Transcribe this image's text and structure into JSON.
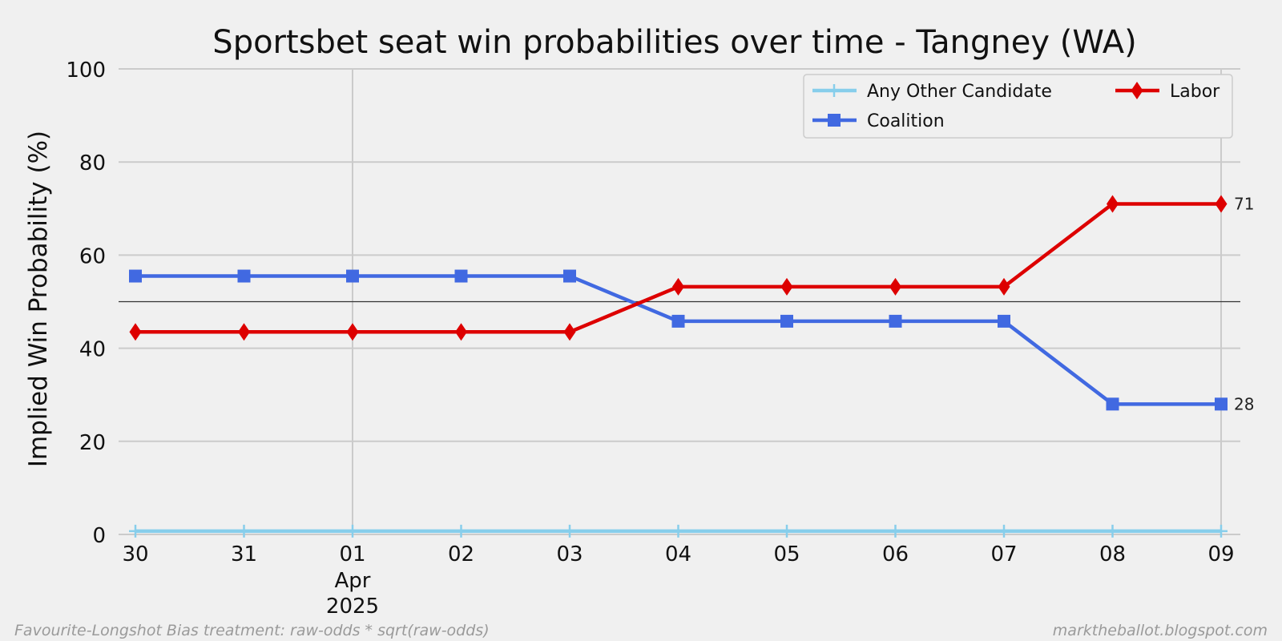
{
  "chart_data": {
    "type": "line",
    "title": "Sportsbet seat win probabilities over time - Tangney (WA)",
    "ylabel": "Implied Win Probability (%)",
    "xlabel": "",
    "ylim": [
      0,
      100
    ],
    "yticks": [
      "0",
      "20",
      "40",
      "60",
      "80",
      "100"
    ],
    "categories": [
      "30",
      "31",
      "01",
      "02",
      "03",
      "04",
      "05",
      "06",
      "07",
      "08",
      "09"
    ],
    "month_label": "Apr",
    "year_label": "2025",
    "reference_line": 50,
    "grid": true,
    "legend_position": "top-right",
    "series": [
      {
        "name": "Any Other Candidate",
        "color": "#87ceeb",
        "marker": "plus",
        "values": [
          0.7,
          0.7,
          0.7,
          0.7,
          0.7,
          0.7,
          0.7,
          0.7,
          0.7,
          0.7,
          0.7
        ]
      },
      {
        "name": "Coalition",
        "color": "#4169e1",
        "marker": "square",
        "values": [
          55.5,
          55.5,
          55.5,
          55.5,
          55.5,
          45.8,
          45.8,
          45.8,
          45.8,
          28,
          28
        ],
        "end_label": "28"
      },
      {
        "name": "Labor",
        "color": "#dd0000",
        "marker": "diamond",
        "values": [
          43.5,
          43.5,
          43.5,
          43.5,
          43.5,
          53.2,
          53.2,
          53.2,
          53.2,
          71,
          71
        ],
        "end_label": "71"
      }
    ]
  },
  "footer": {
    "left": "Favourite-Longshot Bias treatment: raw-odds * sqrt(raw-odds)",
    "right": "marktheballot.blogspot.com"
  }
}
